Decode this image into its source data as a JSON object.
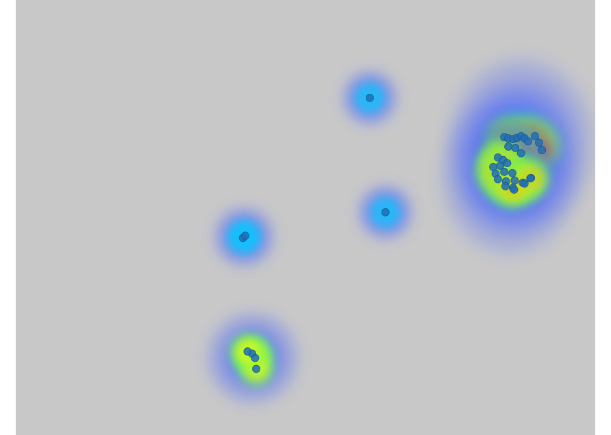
{
  "chart_data": {
    "type": "scatter",
    "subtype": "gaze-heatmap-overlay",
    "title": "",
    "xlabel": "",
    "ylabel": "",
    "xlim": [
      0,
      1
    ],
    "ylim": [
      0,
      1
    ],
    "grid": false,
    "legend": "none",
    "colors": {
      "panel_background": "#c8c8c9",
      "point_fill": "#1f6fb5",
      "point_stroke": "#175a95",
      "heat_ramp": [
        "#3c5aff",
        "#00c8ff",
        "#5af064",
        "#ffff00",
        "#ff9600",
        "#e60000"
      ]
    },
    "clusters": [
      {
        "name": "cluster-top-center",
        "intensity": 0.35,
        "spread": 0.03,
        "points": [
          {
            "x": 0.611,
            "y": 0.225
          }
        ]
      },
      {
        "name": "cluster-center-right",
        "intensity": 0.35,
        "spread": 0.03,
        "points": [
          {
            "x": 0.638,
            "y": 0.488
          }
        ]
      },
      {
        "name": "cluster-left-middle",
        "intensity": 0.35,
        "spread": 0.03,
        "points": [
          {
            "x": 0.392,
            "y": 0.547
          },
          {
            "x": 0.396,
            "y": 0.542
          }
        ]
      },
      {
        "name": "cluster-bottom-left",
        "intensity": 0.75,
        "spread": 0.028,
        "points": [
          {
            "x": 0.408,
            "y": 0.813
          },
          {
            "x": 0.413,
            "y": 0.823
          },
          {
            "x": 0.415,
            "y": 0.848
          },
          {
            "x": 0.4,
            "y": 0.808
          }
        ]
      },
      {
        "name": "cluster-right-upper",
        "intensity": 1.0,
        "spread": 0.035,
        "points": [
          {
            "x": 0.843,
            "y": 0.315
          },
          {
            "x": 0.85,
            "y": 0.318
          },
          {
            "x": 0.858,
            "y": 0.32
          },
          {
            "x": 0.865,
            "y": 0.317
          },
          {
            "x": 0.872,
            "y": 0.313
          },
          {
            "x": 0.878,
            "y": 0.318
          },
          {
            "x": 0.884,
            "y": 0.325
          },
          {
            "x": 0.896,
            "y": 0.313
          },
          {
            "x": 0.903,
            "y": 0.328
          },
          {
            "x": 0.908,
            "y": 0.345
          },
          {
            "x": 0.85,
            "y": 0.337
          },
          {
            "x": 0.862,
            "y": 0.34
          },
          {
            "x": 0.872,
            "y": 0.352
          }
        ]
      },
      {
        "name": "cluster-right-lower",
        "intensity": 0.85,
        "spread": 0.032,
        "points": [
          {
            "x": 0.832,
            "y": 0.362
          },
          {
            "x": 0.841,
            "y": 0.368
          },
          {
            "x": 0.824,
            "y": 0.384
          },
          {
            "x": 0.836,
            "y": 0.381
          },
          {
            "x": 0.848,
            "y": 0.375
          },
          {
            "x": 0.828,
            "y": 0.399
          },
          {
            "x": 0.843,
            "y": 0.395
          },
          {
            "x": 0.857,
            "y": 0.398
          },
          {
            "x": 0.832,
            "y": 0.412
          },
          {
            "x": 0.846,
            "y": 0.417
          },
          {
            "x": 0.861,
            "y": 0.415
          },
          {
            "x": 0.875,
            "y": 0.42
          },
          {
            "x": 0.889,
            "y": 0.409
          },
          {
            "x": 0.845,
            "y": 0.428
          },
          {
            "x": 0.858,
            "y": 0.432
          },
          {
            "x": 0.878,
            "y": 0.422
          },
          {
            "x": 0.888,
            "y": 0.41
          },
          {
            "x": 0.86,
            "y": 0.436
          }
        ]
      }
    ]
  }
}
